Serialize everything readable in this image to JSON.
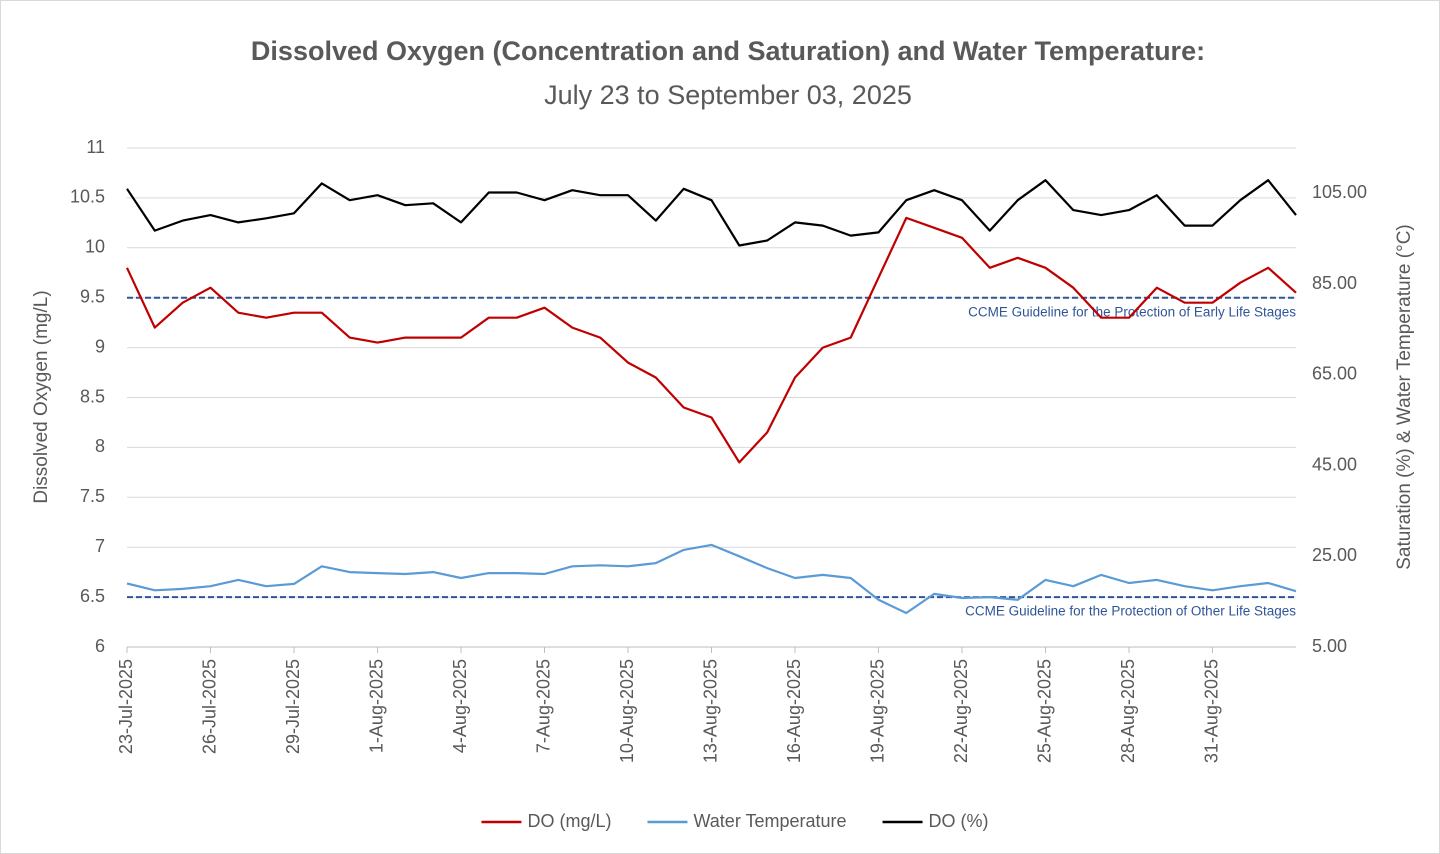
{
  "chart_data": {
    "type": "line",
    "title": "Dissolved Oxygen (Concentration and Saturation) and Water Temperature:",
    "subtitle": "July 23 to September 03, 2025",
    "y_label": "Dissolved Oxygen (mg/L)",
    "y2_label": "Saturation (%) & Water Temperature (°C)",
    "x": [
      "2025-07-23",
      "2025-07-24",
      "2025-07-25",
      "2025-07-26",
      "2025-07-27",
      "2025-07-28",
      "2025-07-29",
      "2025-07-30",
      "2025-07-31",
      "2025-08-01",
      "2025-08-02",
      "2025-08-03",
      "2025-08-04",
      "2025-08-05",
      "2025-08-06",
      "2025-08-07",
      "2025-08-08",
      "2025-08-09",
      "2025-08-10",
      "2025-08-11",
      "2025-08-12",
      "2025-08-13",
      "2025-08-14",
      "2025-08-15",
      "2025-08-16",
      "2025-08-17",
      "2025-08-18",
      "2025-08-19",
      "2025-08-20",
      "2025-08-21",
      "2025-08-22",
      "2025-08-23",
      "2025-08-24",
      "2025-08-25",
      "2025-08-26",
      "2025-08-27",
      "2025-08-28",
      "2025-08-29",
      "2025-08-30",
      "2025-08-31",
      "2025-09-01",
      "2025-09-02",
      "2025-09-03"
    ],
    "xlim": [
      "2025-07-23",
      "2025-09-03"
    ],
    "xticks": [
      {
        "value": "2025-07-23",
        "label": "23-Jul-2025"
      },
      {
        "value": "2025-07-26",
        "label": "26-Jul-2025"
      },
      {
        "value": "2025-07-29",
        "label": "29-Jul-2025"
      },
      {
        "value": "2025-08-01",
        "label": "1-Aug-2025"
      },
      {
        "value": "2025-08-04",
        "label": "4-Aug-2025"
      },
      {
        "value": "2025-08-07",
        "label": "7-Aug-2025"
      },
      {
        "value": "2025-08-10",
        "label": "10-Aug-2025"
      },
      {
        "value": "2025-08-13",
        "label": "13-Aug-2025"
      },
      {
        "value": "2025-08-16",
        "label": "16-Aug-2025"
      },
      {
        "value": "2025-08-19",
        "label": "19-Aug-2025"
      },
      {
        "value": "2025-08-22",
        "label": "22-Aug-2025"
      },
      {
        "value": "2025-08-25",
        "label": "25-Aug-2025"
      },
      {
        "value": "2025-08-28",
        "label": "28-Aug-2025"
      },
      {
        "value": "2025-08-31",
        "label": "31-Aug-2025"
      }
    ],
    "ylim": [
      6,
      11
    ],
    "yticks": [
      6,
      6.5,
      7,
      7.5,
      8,
      8.5,
      9,
      9.5,
      10,
      10.5,
      11
    ],
    "y2lim": [
      5,
      115
    ],
    "y2ticks": [
      {
        "value": 5,
        "label": "5.00"
      },
      {
        "value": 25,
        "label": "25.00"
      },
      {
        "value": 45,
        "label": "45.00"
      },
      {
        "value": 65,
        "label": "65.00"
      },
      {
        "value": 85,
        "label": "85.00"
      },
      {
        "value": 105,
        "label": "105.00"
      }
    ],
    "grid": true,
    "legend": "bottom",
    "reference_lines": [
      {
        "value": 9.5,
        "label": "CCME Guideline for the Protection of Early Life Stages",
        "color": "#2f5597"
      },
      {
        "value": 6.5,
        "label": "CCME Guideline for the Protection of Other Life Stages",
        "color": "#2f5597"
      }
    ],
    "series": [
      {
        "name": "DO (mg/L)",
        "color": "#c00000",
        "values": [
          9.8,
          9.2,
          9.45,
          9.6,
          9.35,
          9.3,
          9.35,
          9.35,
          9.1,
          9.05,
          9.1,
          9.1,
          9.1,
          9.3,
          9.3,
          9.4,
          9.2,
          9.1,
          8.85,
          8.7,
          8.4,
          8.3,
          7.85,
          8.15,
          8.7,
          9.0,
          9.1,
          9.7,
          10.3,
          10.2,
          10.1,
          9.8,
          9.9,
          9.8,
          9.6,
          9.3,
          9.3,
          9.6,
          9.45,
          9.45,
          9.65,
          9.8,
          9.55
        ]
      },
      {
        "name": "Water Temperature",
        "color": "#5b9bd5",
        "axis": "y2",
        "values": [
          19,
          17.5,
          17.8,
          18.4,
          19.8,
          18.4,
          18.9,
          22.8,
          21.5,
          21.3,
          21.1,
          21.5,
          20.2,
          21.3,
          21.3,
          21.1,
          22.8,
          23,
          22.8,
          23.5,
          26.4,
          27.5,
          25,
          22.4,
          20.2,
          20.9,
          20.2,
          15.4,
          12.5,
          16.7,
          15.8,
          16,
          15.4,
          19.8,
          18.4,
          20.9,
          19.1,
          19.8,
          18.4,
          17.5,
          18.4,
          19.1,
          17.3
        ]
      },
      {
        "name": "DO (%)",
        "color": "#000000",
        "axis": "y2",
        "values": [
          106,
          96.8,
          99,
          100.2,
          98.6,
          99.5,
          100.6,
          107.2,
          103.5,
          104.6,
          102.4,
          102.8,
          98.6,
          105.2,
          105.2,
          103.5,
          105.7,
          104.6,
          104.6,
          99,
          106,
          103.5,
          93.5,
          94.6,
          98.6,
          97.9,
          95.7,
          96.4,
          103.5,
          105.7,
          103.5,
          96.8,
          103.5,
          107.9,
          101.3,
          100.2,
          101.3,
          104.6,
          97.9,
          97.9,
          103.5,
          107.9,
          100.2
        ]
      }
    ]
  }
}
